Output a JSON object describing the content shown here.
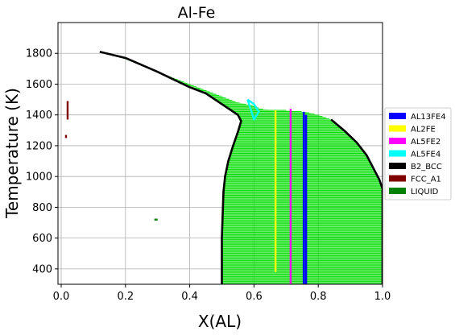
{
  "chart_data": {
    "type": "scatter",
    "title": "Al-Fe",
    "xlabel": "X(AL)",
    "ylabel": "Temperature (K)",
    "xlim": [
      -0.01,
      1.0
    ],
    "ylim": [
      300,
      2000
    ],
    "xticks": [
      0.0,
      0.2,
      0.4,
      0.6,
      0.8,
      1.0
    ],
    "xtick_labels": [
      "0.0",
      "0.2",
      "0.4",
      "0.6",
      "0.8",
      "1.0"
    ],
    "yticks": [
      400,
      600,
      800,
      1000,
      1200,
      1400,
      1600,
      1800
    ],
    "ytick_labels": [
      "400",
      "600",
      "800",
      "1000",
      "1200",
      "1400",
      "1600",
      "1800"
    ],
    "grid": true,
    "legend_position": "right",
    "legend": [
      {
        "name": "AL13FE4",
        "color": "#0000ff"
      },
      {
        "name": "AL2FE",
        "color": "#ffff00"
      },
      {
        "name": "AL5FE2",
        "color": "#ff00ff"
      },
      {
        "name": "AL5FE4",
        "color": "#00ffff"
      },
      {
        "name": "B2_BCC",
        "color": "#000000"
      },
      {
        "name": "FCC_A1",
        "color": "#800000"
      },
      {
        "name": "LIQUID",
        "color": "#008000"
      }
    ],
    "liquid_region": {
      "color": "#00dd00",
      "left_boundary": [
        [
          0.5,
          300
        ],
        [
          0.5,
          600
        ],
        [
          0.505,
          900
        ],
        [
          0.51,
          1000
        ],
        [
          0.52,
          1100
        ],
        [
          0.535,
          1200
        ],
        [
          0.55,
          1290
        ],
        [
          0.56,
          1360
        ],
        [
          0.55,
          1400
        ],
        [
          0.5,
          1470
        ],
        [
          0.45,
          1540
        ],
        [
          0.4,
          1580
        ],
        [
          0.3,
          1680
        ],
        [
          0.2,
          1770
        ],
        [
          0.12,
          1810
        ]
      ],
      "right_boundary": [
        [
          1.0,
          300
        ],
        [
          1.0,
          920
        ],
        [
          0.99,
          980
        ],
        [
          0.97,
          1060
        ],
        [
          0.95,
          1140
        ],
        [
          0.92,
          1220
        ],
        [
          0.88,
          1300
        ],
        [
          0.84,
          1370
        ],
        [
          0.8,
          1400
        ],
        [
          0.76,
          1420
        ],
        [
          0.7,
          1430
        ],
        [
          0.66,
          1430
        ],
        [
          0.62,
          1440
        ],
        [
          0.6,
          1460
        ],
        [
          0.55,
          1480
        ],
        [
          0.45,
          1560
        ],
        [
          0.35,
          1640
        ],
        [
          0.25,
          1720
        ],
        [
          0.15,
          1800
        ],
        [
          0.12,
          1810
        ]
      ]
    },
    "series": [
      {
        "name": "B2_BCC",
        "color": "#000000",
        "x": [
          0.5,
          0.5,
          0.505,
          0.51,
          0.52,
          0.535,
          0.55,
          0.56,
          0.55,
          0.5,
          0.45,
          0.4,
          0.3,
          0.2,
          0.12
        ],
        "y": [
          300,
          600,
          900,
          1000,
          1100,
          1200,
          1290,
          1360,
          1400,
          1470,
          1540,
          1580,
          1680,
          1770,
          1810
        ]
      },
      {
        "name": "B2_BCC",
        "color": "#000000",
        "x": [
          1.0,
          1.0,
          0.99,
          0.97,
          0.95,
          0.92,
          0.88,
          0.84
        ],
        "y": [
          300,
          920,
          980,
          1060,
          1140,
          1220,
          1300,
          1370
        ]
      },
      {
        "name": "AL2FE",
        "color": "#ffff00",
        "x": [
          0.667,
          0.667
        ],
        "y": [
          380,
          1430
        ]
      },
      {
        "name": "AL5FE2",
        "color": "#ff00ff",
        "x": [
          0.714,
          0.714
        ],
        "y": [
          300,
          1440
        ]
      },
      {
        "name": "AL13FE4",
        "color": "#0000ff",
        "x": [
          0.755,
          0.755
        ],
        "y": [
          300,
          1420
        ]
      },
      {
        "name": "AL13FE4",
        "color": "#0000ff",
        "x": [
          0.762,
          0.762
        ],
        "y": [
          300,
          1400
        ]
      },
      {
        "name": "AL5FE4",
        "color": "#00ffff",
        "x": [
          0.58,
          0.6,
          0.615,
          0.6,
          0.58
        ],
        "y": [
          1500,
          1370,
          1420,
          1470,
          1500
        ]
      },
      {
        "name": "FCC_A1",
        "color": "#800000",
        "x": [
          0.02,
          0.02
        ],
        "y": [
          1370,
          1490
        ]
      },
      {
        "name": "FCC_A1",
        "color": "#800000",
        "x": [
          0.015,
          0.015
        ],
        "y": [
          1250,
          1270
        ]
      },
      {
        "name": "LIQUID",
        "color": "#008000",
        "x": [
          0.29,
          0.3
        ],
        "y": [
          720,
          720
        ]
      }
    ]
  }
}
